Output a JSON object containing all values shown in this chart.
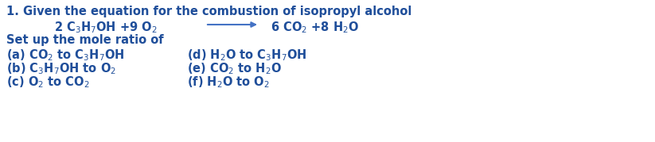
{
  "background_color": "#ffffff",
  "text_color": "#1f4e9a",
  "font_size_title": 10.5,
  "font_size_eq": 10.5,
  "font_size_body": 10.5,
  "arrow_color": "#4472c4",
  "figsize": [
    8.23,
    1.79
  ],
  "dpi": 100,
  "title": "1. Given the equation for the combustion of isopropyl alcohol",
  "eq_left": "2 C$_3$H$_7$OH +9 O$_2$",
  "eq_right": "6 CO$_2$ +8 H$_2$O",
  "setup": "Set up the mole ratio of",
  "left_items": [
    "(a) CO$_2$ to C$_3$H$_7$OH",
    "(b) C$_3$H$_7$OH to O$_2$",
    "(c) O$_2$ to CO$_2$"
  ],
  "right_items": [
    "(d) H$_2$O to C$_3$H$_7$OH",
    "(e) CO$_2$ to H$_2$O",
    "(f) H$_2$O to O$_2$"
  ]
}
